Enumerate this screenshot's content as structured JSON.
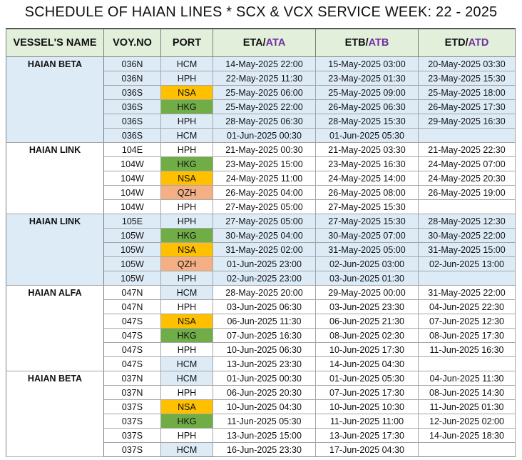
{
  "title": "SCHEDULE OF HAIAN LINES * SCX & VCX SERVICE WEEK: 22 - 2025",
  "headers": {
    "vessel": "VESSEL'S NAME",
    "voy": "VOY.NO",
    "port": "PORT",
    "eta_a": "ETA/",
    "eta_b": "ATA",
    "etb_a": "ETB/",
    "etb_b": "ATB",
    "etd_a": "ETD/",
    "etd_b": "ATD"
  },
  "colors": {
    "header_bg": "#e2efda",
    "accent": "#7030a0",
    "group_blue": "#ddebf7",
    "NSA": "#ffc000",
    "HKG": "#70ad47",
    "QZH": "#f4b084",
    "HCM": "#ddebf7"
  },
  "groups": [
    {
      "vessel": "HAIAN BETA",
      "shade": "blue",
      "rows": [
        {
          "voy": "036N",
          "port": "HCM",
          "eta": "14-May-2025 22:00",
          "etb": "15-May-2025 03:00",
          "etd": "20-May-2025 03:30"
        },
        {
          "voy": "036N",
          "port": "HPH",
          "eta": "22-May-2025 11:30",
          "etb": "23-May-2025 01:30",
          "etd": "23-May-2025 15:30"
        },
        {
          "voy": "036S",
          "port": "NSA",
          "eta": "25-May-2025 06:00",
          "etb": "25-May-2025 09:00",
          "etd": "25-May-2025 18:00"
        },
        {
          "voy": "036S",
          "port": "HKG",
          "eta": "25-May-2025 22:00",
          "etb": "26-May-2025 06:30",
          "etd": "26-May-2025 17:30"
        },
        {
          "voy": "036S",
          "port": "HPH",
          "eta": "28-May-2025 06:30",
          "etb": "28-May-2025 15:30",
          "etd": "29-May-2025 16:30"
        },
        {
          "voy": "036S",
          "port": "HCM",
          "eta": "01-Jun-2025 00:30",
          "etb": "01-Jun-2025 05:30",
          "etd": ""
        }
      ]
    },
    {
      "vessel": "HAIAN LINK",
      "shade": "white",
      "rows": [
        {
          "voy": "104E",
          "port": "HPH",
          "eta": "21-May-2025 00:30",
          "etb": "21-May-2025 03:30",
          "etd": "21-May-2025 22:30"
        },
        {
          "voy": "104W",
          "port": "HKG",
          "eta": "23-May-2025 15:00",
          "etb": "23-May-2025 16:30",
          "etd": "24-May-2025 07:00"
        },
        {
          "voy": "104W",
          "port": "NSA",
          "eta": "24-May-2025 11:00",
          "etb": "24-May-2025 14:00",
          "etd": "24-May-2025 20:30"
        },
        {
          "voy": "104W",
          "port": "QZH",
          "eta": "26-May-2025 04:00",
          "etb": "26-May-2025 08:00",
          "etd": "26-May-2025 19:00"
        },
        {
          "voy": "104W",
          "port": "HPH",
          "eta": "27-May-2025 05:00",
          "etb": "27-May-2025 15:30",
          "etd": ""
        }
      ]
    },
    {
      "vessel": "HAIAN LINK",
      "shade": "blue",
      "rows": [
        {
          "voy": "105E",
          "port": "HPH",
          "eta": "27-May-2025 05:00",
          "etb": "27-May-2025 15:30",
          "etd": "28-May-2025 12:30"
        },
        {
          "voy": "105W",
          "port": "HKG",
          "eta": "30-May-2025 04:00",
          "etb": "30-May-2025 07:00",
          "etd": "30-May-2025 22:00"
        },
        {
          "voy": "105W",
          "port": "NSA",
          "eta": "31-May-2025 02:00",
          "etb": "31-May-2025 05:00",
          "etd": "31-May-2025 15:00"
        },
        {
          "voy": "105W",
          "port": "QZH",
          "eta": "01-Jun-2025 23:00",
          "etb": "02-Jun-2025 03:00",
          "etd": "02-Jun-2025 13:00"
        },
        {
          "voy": "105W",
          "port": "HPH",
          "eta": "02-Jun-2025 23:00",
          "etb": "03-Jun-2025 01:30",
          "etd": ""
        }
      ]
    },
    {
      "vessel": "HAIAN ALFA",
      "shade": "white",
      "rows": [
        {
          "voy": "047N",
          "port": "HCM",
          "eta": "28-May-2025 20:00",
          "etb": "29-May-2025 00:00",
          "etd": "31-May-2025 22:00"
        },
        {
          "voy": "047N",
          "port": "HPH",
          "eta": "03-Jun-2025 06:30",
          "etb": "03-Jun-2025 23:30",
          "etd": "04-Jun-2025 22:30"
        },
        {
          "voy": "047S",
          "port": "NSA",
          "eta": "06-Jun-2025 11:30",
          "etb": "06-Jun-2025 21:30",
          "etd": "07-Jun-2025 12:30"
        },
        {
          "voy": "047S",
          "port": "HKG",
          "eta": "07-Jun-2025 16:30",
          "etb": "08-Jun-2025 02:30",
          "etd": "08-Jun-2025 17:30"
        },
        {
          "voy": "047S",
          "port": "HPH",
          "eta": "10-Jun-2025 06:30",
          "etb": "10-Jun-2025 17:30",
          "etd": "11-Jun-2025 16:30"
        },
        {
          "voy": "047S",
          "port": "HCM",
          "eta": "13-Jun-2025 23:30",
          "etb": "14-Jun-2025 04:30",
          "etd": ""
        }
      ]
    },
    {
      "vessel": "HAIAN BETA",
      "shade": "white",
      "rows": [
        {
          "voy": "037N",
          "port": "HCM",
          "eta": "01-Jun-2025 00:30",
          "etb": "01-Jun-2025 05:30",
          "etd": "04-Jun-2025 11:30"
        },
        {
          "voy": "037N",
          "port": "HPH",
          "eta": "06-Jun-2025 20:30",
          "etb": "07-Jun-2025 17:30",
          "etd": "08-Jun-2025 14:30"
        },
        {
          "voy": "037S",
          "port": "NSA",
          "eta": "10-Jun-2025 04:30",
          "etb": "10-Jun-2025 10:30",
          "etd": "11-Jun-2025 01:30"
        },
        {
          "voy": "037S",
          "port": "HKG",
          "eta": "11-Jun-2025 05:30",
          "etb": "11-Jun-2025 11:00",
          "etd": "12-Jun-2025 02:00"
        },
        {
          "voy": "037S",
          "port": "HPH",
          "eta": "13-Jun-2025 15:00",
          "etb": "13-Jun-2025 17:30",
          "etd": "14-Jun-2025 18:30"
        },
        {
          "voy": "037S",
          "port": "HCM",
          "eta": "16-Jun-2025 23:30",
          "etb": "17-Jun-2025 04:30",
          "etd": ""
        }
      ]
    }
  ]
}
